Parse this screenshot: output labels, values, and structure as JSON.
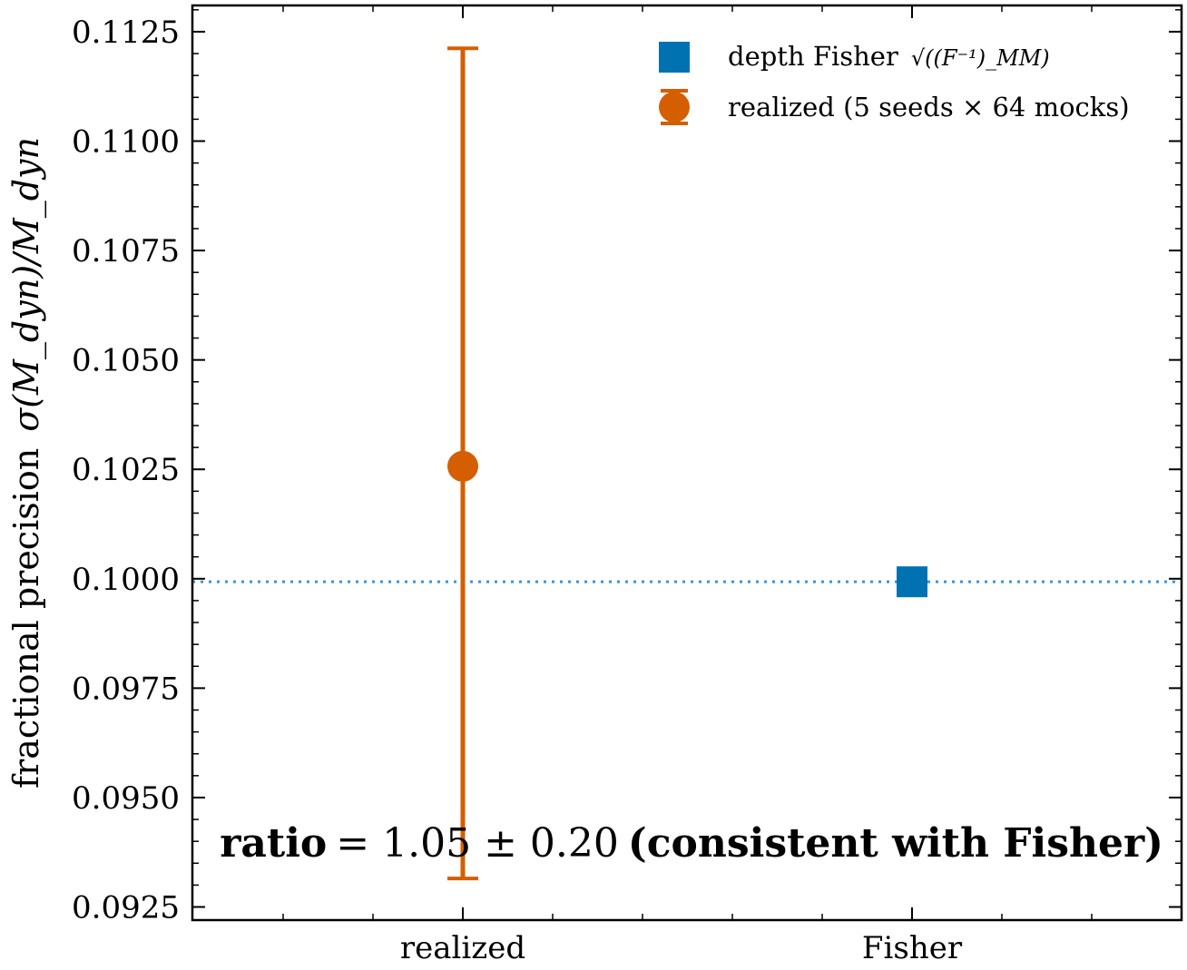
{
  "chart_data": {
    "type": "scatter",
    "categories": [
      "realized",
      "Fisher"
    ],
    "ylabel_prefix": "fractional precision",
    "ylabel_math": "σ(M_dyn)/M_dyn",
    "ylim": [
      0.0922,
      0.1131
    ],
    "yticks": [
      "0.0925",
      "0.0950",
      "0.0975",
      "0.1000",
      "0.1025",
      "0.1050",
      "0.1075",
      "0.1100",
      "0.1125"
    ],
    "series": [
      {
        "name": "depth Fisher",
        "name_math": "√((F⁻¹)_MM)",
        "marker": "square",
        "color": "#0072b2",
        "x": "Fisher",
        "y": 0.09993
      },
      {
        "name": "realized (5 seeds × 64 mocks)",
        "marker": "circle",
        "color": "#d55e00",
        "x": "realized",
        "y": 0.10257,
        "err_low": 0.09315,
        "err_high": 0.11212
      }
    ],
    "reference_line": {
      "y": 0.09993,
      "style": "dotted",
      "color": "#3a95d6"
    },
    "annotation": {
      "bold_prefix": "ratio",
      "math": "= 1.05 ± 0.20",
      "bold_suffix": "(consistent with Fisher)"
    },
    "legend_position": "top-right",
    "grid": false
  }
}
